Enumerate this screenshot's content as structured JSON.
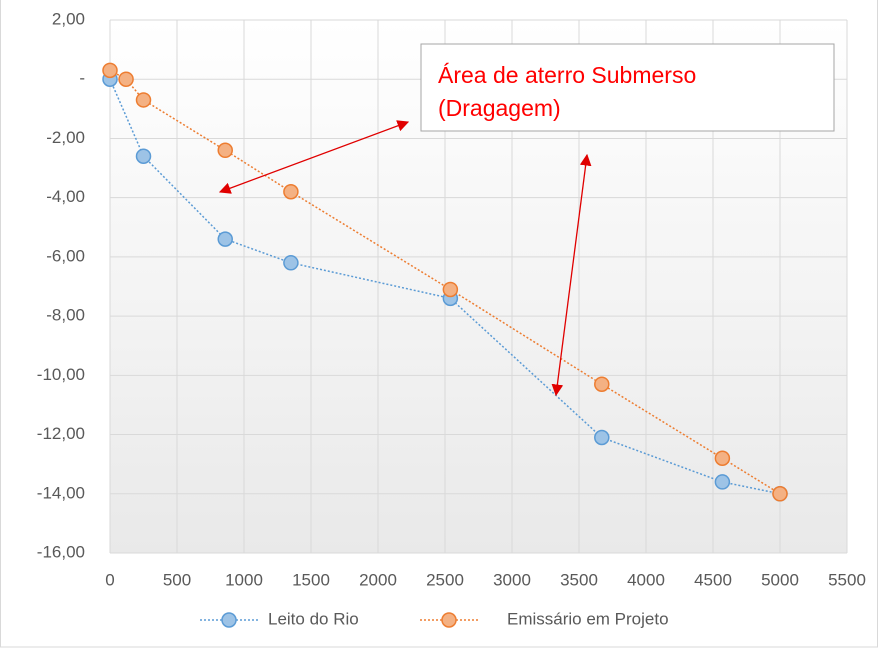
{
  "chart_data": {
    "type": "line",
    "xlim": [
      0,
      5500
    ],
    "xticks": [
      0,
      500,
      1000,
      1500,
      2000,
      2500,
      3000,
      3500,
      4000,
      4500,
      5000,
      5500
    ],
    "ylim": [
      -16,
      2
    ],
    "yticks": [
      {
        "value": 2,
        "label": "2,00"
      },
      {
        "value": 0,
        "label": "-"
      },
      {
        "value": -2,
        "label": "-2,00"
      },
      {
        "value": -4,
        "label": "-4,00"
      },
      {
        "value": -6,
        "label": "-6,00"
      },
      {
        "value": -8,
        "label": "-8,00"
      },
      {
        "value": -10,
        "label": "-10,00"
      },
      {
        "value": -12,
        "label": "-12,00"
      },
      {
        "value": -14,
        "label": "-14,00"
      },
      {
        "value": -16,
        "label": "-16,00"
      }
    ],
    "grid": true,
    "legend": "bottom",
    "annotations": [
      "Área de aterro Submerso",
      "(Dragagem)"
    ],
    "series": [
      {
        "name": "Leito do Rio",
        "color": "#5b9bd5",
        "fill": "#9dc3e6",
        "x": [
          0,
          250,
          860,
          1350,
          2540,
          3670,
          4570,
          5000
        ],
        "values": [
          0,
          -2.6,
          -5.4,
          -6.2,
          -7.4,
          -12.1,
          -13.6,
          -14.0
        ]
      },
      {
        "name": "Emissário em Projeto",
        "color": "#ed7d31",
        "fill": "#f4b183",
        "x": [
          0,
          120,
          250,
          860,
          1350,
          2540,
          3670,
          4570,
          5000
        ],
        "values": [
          0.3,
          0,
          -0.7,
          -2.4,
          -3.8,
          -7.1,
          -10.3,
          -12.8,
          -14.0
        ]
      }
    ]
  }
}
